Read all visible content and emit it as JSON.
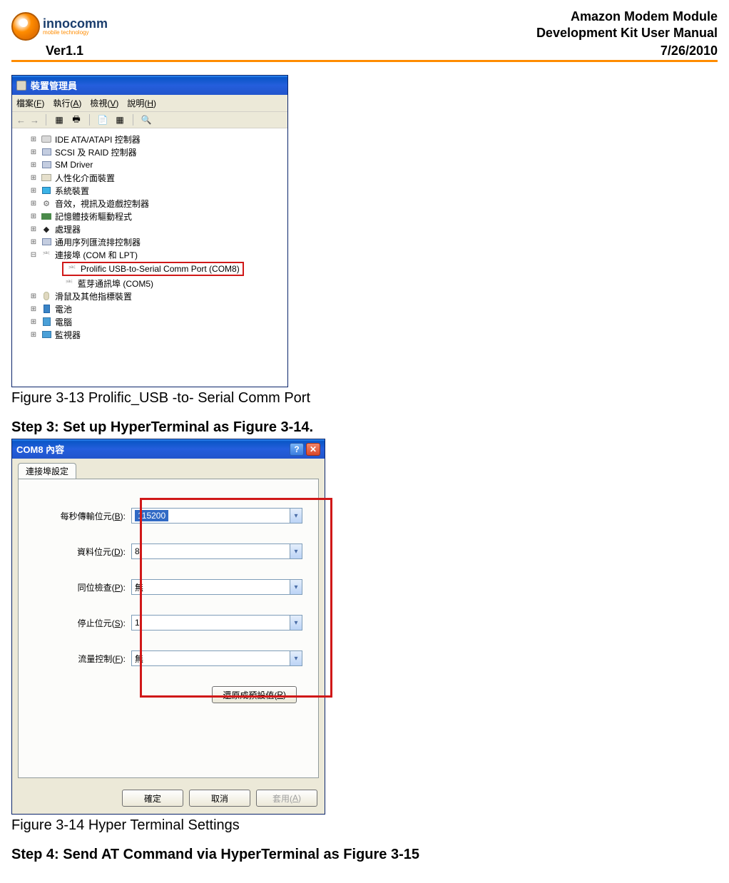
{
  "header": {
    "logo_name": "innocomm",
    "logo_sub": "mobile technology",
    "title_line1": "Amazon Modem Module",
    "title_line2": "Development Kit User Manual",
    "version": "Ver1.1",
    "date": "7/26/2010",
    "rule_color": "#ff8c00"
  },
  "devmgr": {
    "window_title": "裝置管理員",
    "menu": {
      "file": "檔案(F)",
      "action": "執行(A)",
      "view": "檢視(V)",
      "help": "說明(H)"
    },
    "tree": [
      {
        "icon": "hdd",
        "label": "IDE ATA/ATAPI 控制器"
      },
      {
        "icon": "chip",
        "label": "SCSI 及 RAID 控制器"
      },
      {
        "icon": "chip",
        "label": "SM Driver"
      },
      {
        "icon": "card",
        "label": "人性化介面裝置"
      },
      {
        "icon": "monitor",
        "label": "系統裝置"
      },
      {
        "icon": "gear",
        "label": "音效，視訊及遊戲控制器"
      },
      {
        "icon": "mem",
        "label": "記憶體技術驅動程式"
      },
      {
        "icon": "cpu",
        "label": "處理器"
      },
      {
        "icon": "chip",
        "label": "通用序列匯流排控制器"
      },
      {
        "icon": "port",
        "label": "連接埠 (COM 和 LPT)",
        "expanded": true
      },
      {
        "icon": "port",
        "label": "Prolific USB-to-Serial Comm Port (COM8)",
        "child": true,
        "highlight": true
      },
      {
        "icon": "port",
        "label": "藍芽通訊埠 (COM5)",
        "child": true
      },
      {
        "icon": "mouse",
        "label": "滑鼠及其他指標裝置"
      },
      {
        "icon": "batt",
        "label": "電池"
      },
      {
        "icon": "pc",
        "label": "電腦"
      },
      {
        "icon": "mon2",
        "label": "監視器"
      }
    ]
  },
  "caption1": "Figure 3-13 Prolific_USB -to- Serial Comm Port",
  "step3": "Step 3: Set up HyperTerminal as Figure 3-14.",
  "com8": {
    "title": "COM8 內容",
    "tab": "連接埠設定",
    "fields": {
      "baud_label": "每秒傳輸位元(B):",
      "baud_value": "115200",
      "data_label": "資料位元(D):",
      "data_value": "8",
      "parity_label": "同位檢查(P):",
      "parity_value": "無",
      "stop_label": "停止位元(S):",
      "stop_value": "1",
      "flow_label": "流量控制(F):",
      "flow_value": "無"
    },
    "restore": "還原成預設值(R)",
    "ok": "確定",
    "cancel": "取消",
    "apply": "套用(A)",
    "highlight_color": "#d01818"
  },
  "caption2": "Figure 3-14 Hyper Terminal Settings",
  "step4": "Step 4: Send AT Command via HyperTerminal as Figure 3-15"
}
